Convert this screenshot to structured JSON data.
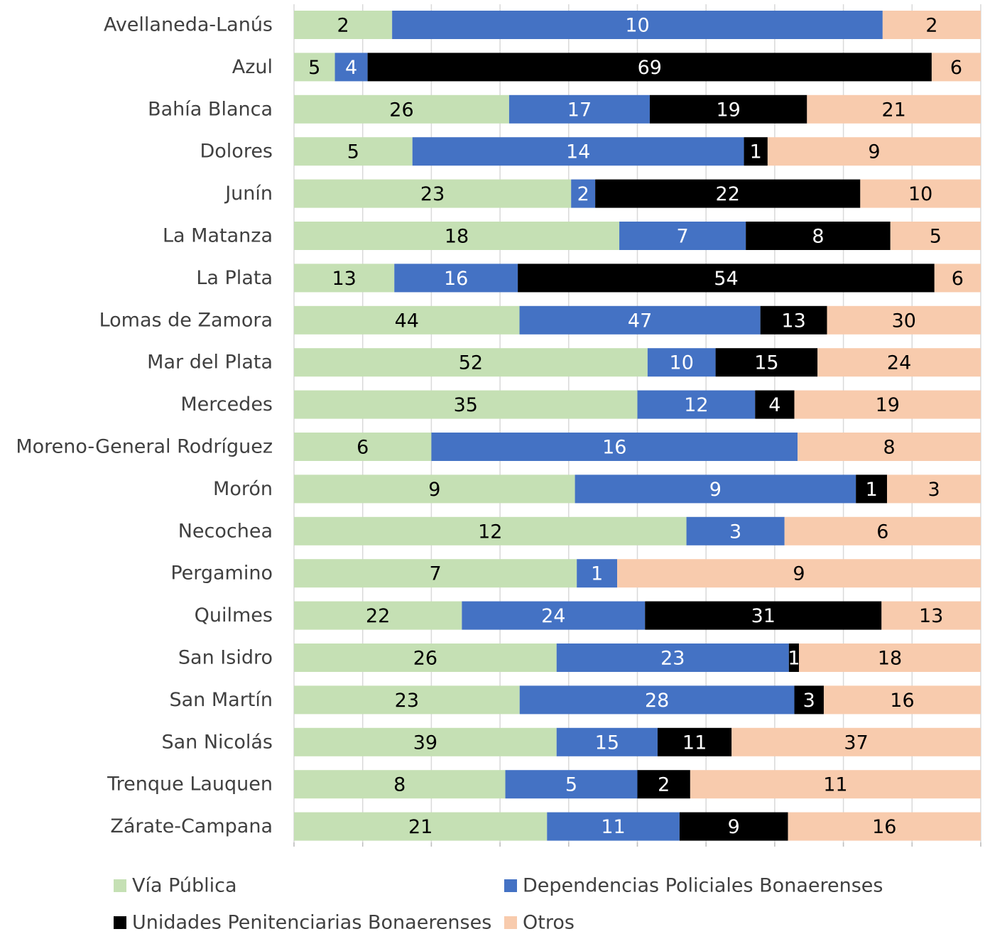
{
  "chart_data": {
    "type": "bar",
    "orientation": "horizontal",
    "stacked": "percent",
    "title": "",
    "xlabel": "",
    "ylabel": "",
    "grid": true,
    "legend_position": "bottom",
    "categories": [
      "Avellaneda-Lanús",
      "Azul",
      "Bahía Blanca",
      "Dolores",
      "Junín",
      "La Matanza",
      "La Plata",
      "Lomas de Zamora",
      "Mar del Plata",
      "Mercedes",
      "Moreno-General Rodríguez",
      "Morón",
      "Necochea",
      "Pergamino",
      "Quilmes",
      "San Isidro",
      "San Martín",
      "San Nicolás",
      "Trenque Lauquen",
      "Zárate-Campana"
    ],
    "series": [
      {
        "name": "Vía Pública",
        "color": "#c5e0b4",
        "label_color": "#000000",
        "values": [
          2,
          5,
          26,
          5,
          23,
          18,
          13,
          44,
          52,
          35,
          6,
          9,
          12,
          7,
          22,
          26,
          23,
          39,
          8,
          21
        ]
      },
      {
        "name": "Dependencias Policiales Bonaerenses",
        "color": "#4472c4",
        "label_color": "#ffffff",
        "values": [
          10,
          4,
          17,
          14,
          2,
          7,
          16,
          47,
          10,
          12,
          16,
          9,
          3,
          1,
          24,
          23,
          28,
          15,
          5,
          11
        ]
      },
      {
        "name": "Unidades Penitenciarias Bonaerenses",
        "color": "#000000",
        "label_color": "#ffffff",
        "values": [
          null,
          69,
          19,
          1,
          22,
          8,
          54,
          13,
          15,
          4,
          null,
          1,
          null,
          null,
          31,
          1,
          3,
          11,
          2,
          9
        ]
      },
      {
        "name": "Otros",
        "color": "#f8cbad",
        "label_color": "#000000",
        "values": [
          2,
          6,
          21,
          9,
          10,
          5,
          6,
          30,
          24,
          19,
          8,
          3,
          6,
          9,
          13,
          18,
          16,
          37,
          11,
          16
        ]
      }
    ]
  }
}
